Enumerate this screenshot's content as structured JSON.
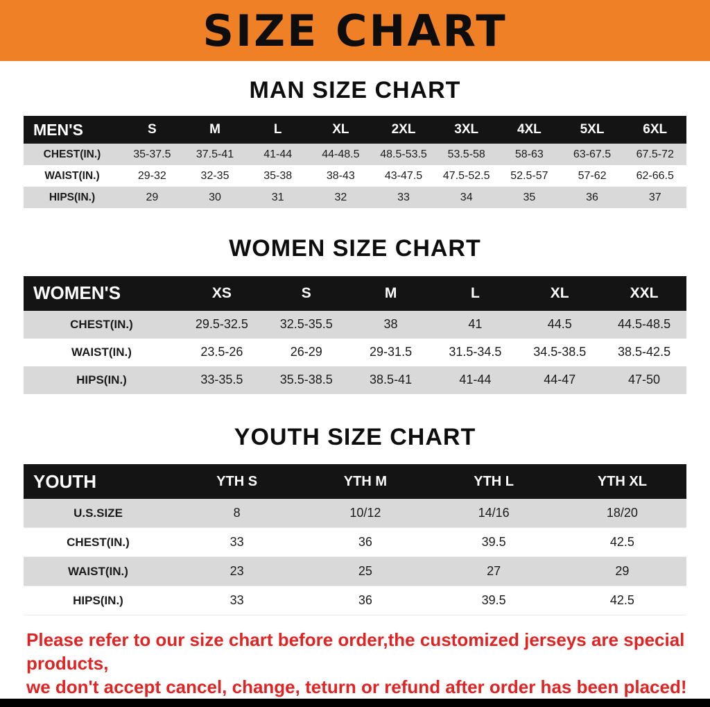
{
  "banner": {
    "title": "SIZE CHART"
  },
  "colors": {
    "banner_bg": "#f08026",
    "header_bg": "#141414",
    "row_alt": "#d9d9d9",
    "note_red": "#e02424"
  },
  "sections": [
    {
      "heading": "MAN SIZE CHART",
      "table": {
        "label": "MEN'S",
        "columns": [
          "S",
          "M",
          "L",
          "XL",
          "2XL",
          "3XL",
          "4XL",
          "5XL",
          "6XL"
        ],
        "rows": [
          {
            "label": "CHEST(IN.)",
            "values": [
              "35-37.5",
              "37.5-41",
              "41-44",
              "44-48.5",
              "48.5-53.5",
              "53.5-58",
              "58-63",
              "63-67.5",
              "67.5-72"
            ]
          },
          {
            "label": "WAIST(IN.)",
            "values": [
              "29-32",
              "32-35",
              "35-38",
              "38-43",
              "43-47.5",
              "47.5-52.5",
              "52.5-57",
              "57-62",
              "62-66.5"
            ]
          },
          {
            "label": "HIPS(IN.)",
            "values": [
              "29",
              "30",
              "31",
              "32",
              "33",
              "34",
              "35",
              "36",
              "37"
            ]
          }
        ]
      }
    },
    {
      "heading": "WOMEN SIZE CHART",
      "table": {
        "label": "WOMEN'S",
        "columns": [
          "XS",
          "S",
          "M",
          "L",
          "XL",
          "XXL"
        ],
        "rows": [
          {
            "label": "CHEST(IN.)",
            "values": [
              "29.5-32.5",
              "32.5-35.5",
              "38",
              "41",
              "44.5",
              "44.5-48.5"
            ]
          },
          {
            "label": "WAIST(IN.)",
            "values": [
              "23.5-26",
              "26-29",
              "29-31.5",
              "31.5-34.5",
              "34.5-38.5",
              "38.5-42.5"
            ]
          },
          {
            "label": "HIPS(IN.)",
            "values": [
              "33-35.5",
              "35.5-38.5",
              "38.5-41",
              "41-44",
              "44-47",
              "47-50"
            ]
          }
        ]
      }
    },
    {
      "heading": "YOUTH SIZE CHART",
      "table": {
        "label": "YOUTH",
        "columns": [
          "YTH S",
          "YTH M",
          "YTH L",
          "YTH XL"
        ],
        "rows": [
          {
            "label": "U.S.SIZE",
            "values": [
              "8",
              "10/12",
              "14/16",
              "18/20"
            ]
          },
          {
            "label": "CHEST(IN.)",
            "values": [
              "33",
              "36",
              "39.5",
              "42.5"
            ]
          },
          {
            "label": "WAIST(IN.)",
            "values": [
              "23",
              "25",
              "27",
              "29"
            ]
          },
          {
            "label": "HIPS(IN.)",
            "values": [
              "33",
              "36",
              "39.5",
              "42.5"
            ]
          }
        ]
      }
    }
  ],
  "footer": {
    "note_lines": [
      "Please refer to our size chart before order,the customized jerseys are special products,",
      "we don't accept cancel, change, teturn or refund after order has been placed!"
    ]
  }
}
